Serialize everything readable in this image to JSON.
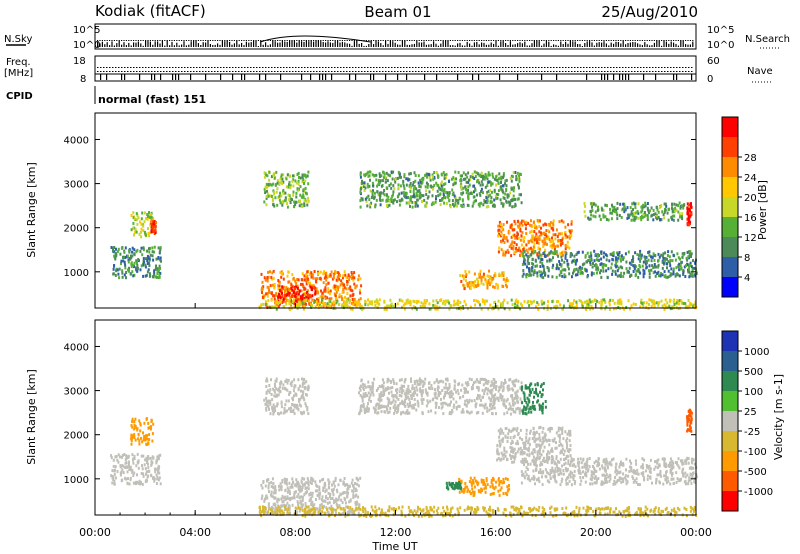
{
  "header": {
    "station": "Kodiak (fitACF)",
    "beam": "Beam 01",
    "date": "25/Aug/2010"
  },
  "top_panels": {
    "nsky_label": "N.Sky",
    "nsearch_label": "N.Search",
    "nsky_ticks": [
      "10^5",
      "10^0"
    ],
    "nsearch_ticks": [
      "10^5",
      "10^0"
    ],
    "freq_label": "Freq.",
    "freq_unit": "[MHz]",
    "freq_ticks": [
      "18",
      "8"
    ],
    "nave_label": "Nave",
    "nave_ticks": [
      "60",
      "0"
    ],
    "cpid_label": "CPID",
    "cpid_value": "normal (fast) 151"
  },
  "x_axis": {
    "label": "Time UT",
    "ticks": [
      "00:00",
      "04:00",
      "08:00",
      "12:00",
      "16:00",
      "20:00",
      "00:00"
    ],
    "range_hours": [
      0,
      24
    ]
  },
  "power_panel": {
    "ylabel": "Slant Range [km]",
    "yticks": [
      "1000",
      "2000",
      "3000",
      "4000"
    ],
    "colorbar_title": "Power [dB]",
    "colorbar_ticks": [
      "4",
      "8",
      "12",
      "16",
      "20",
      "24",
      "28"
    ],
    "colors": [
      "#0000ff",
      "#2e5ea8",
      "#4c8a5a",
      "#55b035",
      "#c8d828",
      "#ffc800",
      "#ff8c00",
      "#ff4000",
      "#ff0000"
    ]
  },
  "velocity_panel": {
    "ylabel": "Slant Range [km]",
    "yticks": [
      "1000",
      "2000",
      "3000",
      "4000"
    ],
    "colorbar_title": "Velocity [m s-1]",
    "colorbar_ticks": [
      "1000",
      "500",
      "100",
      "25",
      "-25",
      "-100",
      "-500",
      "-1000"
    ],
    "colors": [
      "#1e32b4",
      "#2a6090",
      "#2e8a50",
      "#50c030",
      "#c0c0b8",
      "#d8b830",
      "#ff9a00",
      "#ff5a00",
      "#ff0000"
    ]
  },
  "chart_data": [
    {
      "type": "heatmap",
      "title": "Power [dB]",
      "xlabel": "Time UT",
      "ylabel": "Slant Range [km]",
      "xlim": [
        0,
        24
      ],
      "ylim": [
        180,
        4600
      ],
      "colorbar": {
        "label": "Power [dB]",
        "range": [
          0,
          30
        ],
        "ticks": [
          4,
          8,
          12,
          16,
          20,
          24,
          28
        ]
      },
      "regions": [
        {
          "t": [
            0.6,
            2.6
          ],
          "r": [
            900,
            1600
          ],
          "value": 8
        },
        {
          "t": [
            1.4,
            2.3
          ],
          "r": [
            1800,
            2400
          ],
          "value": 14
        },
        {
          "t": [
            2.2,
            2.4
          ],
          "r": [
            1900,
            2200
          ],
          "value": 26
        },
        {
          "t": [
            6.6,
            10.6
          ],
          "r": [
            220,
            1050
          ],
          "value": 22
        },
        {
          "t": [
            7.2,
            8.8
          ],
          "r": [
            300,
            700
          ],
          "value": 28
        },
        {
          "t": [
            6.7,
            8.5
          ],
          "r": [
            2500,
            3300
          ],
          "value": 12
        },
        {
          "t": [
            10.5,
            17.0
          ],
          "r": [
            2500,
            3300
          ],
          "value": 10
        },
        {
          "t": [
            16.0,
            19.0
          ],
          "r": [
            1400,
            2200
          ],
          "value": 22
        },
        {
          "t": [
            17.0,
            24.0
          ],
          "r": [
            900,
            1500
          ],
          "value": 8
        },
        {
          "t": [
            19.5,
            23.5
          ],
          "r": [
            2200,
            2600
          ],
          "value": 10
        },
        {
          "t": [
            6.5,
            24.0
          ],
          "r": [
            180,
            400
          ],
          "value": 16
        },
        {
          "t": [
            14.5,
            16.5
          ],
          "r": [
            650,
            1050
          ],
          "value": 20
        },
        {
          "t": [
            23.6,
            23.8
          ],
          "r": [
            2100,
            2600
          ],
          "value": 28
        }
      ]
    },
    {
      "type": "heatmap",
      "title": "Velocity [m s-1]",
      "xlabel": "Time UT",
      "ylabel": "Slant Range [km]",
      "xlim": [
        0,
        24
      ],
      "ylim": [
        180,
        4600
      ],
      "colorbar": {
        "label": "Velocity [m s-1]",
        "range": [
          -1000,
          1000
        ],
        "ticks": [
          1000,
          500,
          100,
          25,
          -25,
          -100,
          -500,
          -1000
        ]
      },
      "regions": [
        {
          "t": [
            0.6,
            2.6
          ],
          "r": [
            900,
            1600
          ],
          "value": 0
        },
        {
          "t": [
            1.4,
            2.3
          ],
          "r": [
            1800,
            2400
          ],
          "value": -150
        },
        {
          "t": [
            6.6,
            10.6
          ],
          "r": [
            220,
            1050
          ],
          "value": 0
        },
        {
          "t": [
            6.7,
            8.5
          ],
          "r": [
            2500,
            3300
          ],
          "value": 0
        },
        {
          "t": [
            10.5,
            17.0
          ],
          "r": [
            2500,
            3300
          ],
          "value": 0
        },
        {
          "t": [
            16.0,
            19.0
          ],
          "r": [
            1400,
            2200
          ],
          "value": 0
        },
        {
          "t": [
            17.0,
            24.0
          ],
          "r": [
            900,
            1500
          ],
          "value": 0
        },
        {
          "t": [
            6.5,
            24.0
          ],
          "r": [
            180,
            400
          ],
          "value": -60
        },
        {
          "t": [
            14.5,
            16.5
          ],
          "r": [
            650,
            1050
          ],
          "value": -300
        },
        {
          "t": [
            14.0,
            14.6
          ],
          "r": [
            800,
            950
          ],
          "value": 200
        },
        {
          "t": [
            17.0,
            18.0
          ],
          "r": [
            2500,
            3200
          ],
          "value": 150
        },
        {
          "t": [
            23.6,
            23.8
          ],
          "r": [
            2100,
            2600
          ],
          "value": -600
        }
      ]
    }
  ]
}
